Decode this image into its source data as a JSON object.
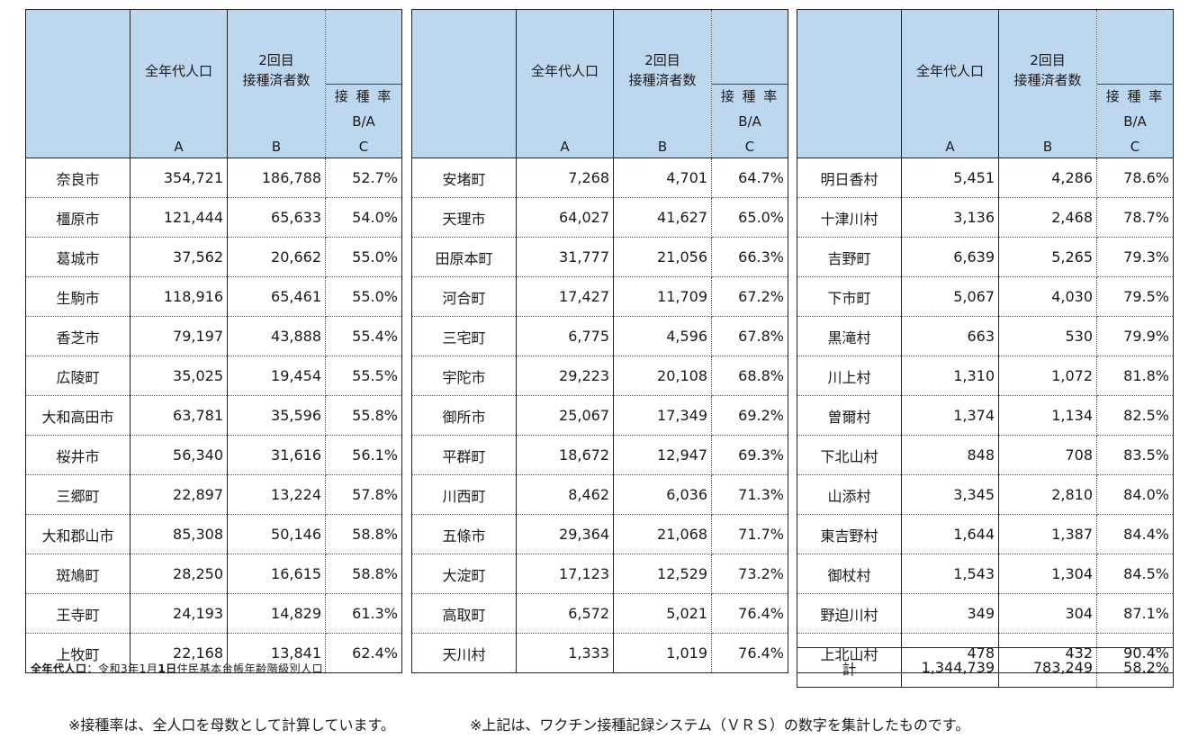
{
  "headers": {
    "col_a_label": "全年代人口",
    "col_b_label_line1": "2回目",
    "col_b_label_line2": "接種済者数",
    "col_c_label_line1": "接 種 率",
    "col_c_label_line2": "B/A",
    "col_a_letter": "A",
    "col_b_letter": "B",
    "col_c_letter": "C"
  },
  "tables": [
    {
      "rows": [
        {
          "name": "奈良市",
          "pop": "354,721",
          "vacc": "186,788",
          "rate": "52.7%"
        },
        {
          "name": "橿原市",
          "pop": "121,444",
          "vacc": "65,633",
          "rate": "54.0%"
        },
        {
          "name": "葛城市",
          "pop": "37,562",
          "vacc": "20,662",
          "rate": "55.0%"
        },
        {
          "name": "生駒市",
          "pop": "118,916",
          "vacc": "65,461",
          "rate": "55.0%"
        },
        {
          "name": "香芝市",
          "pop": "79,197",
          "vacc": "43,888",
          "rate": "55.4%"
        },
        {
          "name": "広陵町",
          "pop": "35,025",
          "vacc": "19,454",
          "rate": "55.5%"
        },
        {
          "name": "大和高田市",
          "pop": "63,781",
          "vacc": "35,596",
          "rate": "55.8%"
        },
        {
          "name": "桜井市",
          "pop": "56,340",
          "vacc": "31,616",
          "rate": "56.1%"
        },
        {
          "name": "三郷町",
          "pop": "22,897",
          "vacc": "13,224",
          "rate": "57.8%"
        },
        {
          "name": "大和郡山市",
          "pop": "85,308",
          "vacc": "50,146",
          "rate": "58.8%"
        },
        {
          "name": "斑鳩町",
          "pop": "28,250",
          "vacc": "16,615",
          "rate": "58.8%"
        },
        {
          "name": "王寺町",
          "pop": "24,193",
          "vacc": "14,829",
          "rate": "61.3%"
        },
        {
          "name": "上牧町",
          "pop": "22,168",
          "vacc": "13,841",
          "rate": "62.4%"
        }
      ]
    },
    {
      "rows": [
        {
          "name": "安堵町",
          "pop": "7,268",
          "vacc": "4,701",
          "rate": "64.7%"
        },
        {
          "name": "天理市",
          "pop": "64,027",
          "vacc": "41,627",
          "rate": "65.0%"
        },
        {
          "name": "田原本町",
          "pop": "31,777",
          "vacc": "21,056",
          "rate": "66.3%"
        },
        {
          "name": "河合町",
          "pop": "17,427",
          "vacc": "11,709",
          "rate": "67.2%"
        },
        {
          "name": "三宅町",
          "pop": "6,775",
          "vacc": "4,596",
          "rate": "67.8%"
        },
        {
          "name": "宇陀市",
          "pop": "29,223",
          "vacc": "20,108",
          "rate": "68.8%"
        },
        {
          "name": "御所市",
          "pop": "25,067",
          "vacc": "17,349",
          "rate": "69.2%"
        },
        {
          "name": "平群町",
          "pop": "18,672",
          "vacc": "12,947",
          "rate": "69.3%"
        },
        {
          "name": "川西町",
          "pop": "8,462",
          "vacc": "6,036",
          "rate": "71.3%"
        },
        {
          "name": "五條市",
          "pop": "29,364",
          "vacc": "21,068",
          "rate": "71.7%"
        },
        {
          "name": "大淀町",
          "pop": "17,123",
          "vacc": "12,529",
          "rate": "73.2%"
        },
        {
          "name": "高取町",
          "pop": "6,572",
          "vacc": "5,021",
          "rate": "76.4%"
        },
        {
          "name": "天川村",
          "pop": "1,333",
          "vacc": "1,019",
          "rate": "76.4%"
        }
      ]
    },
    {
      "rows": [
        {
          "name": "明日香村",
          "pop": "5,451",
          "vacc": "4,286",
          "rate": "78.6%"
        },
        {
          "name": "十津川村",
          "pop": "3,136",
          "vacc": "2,468",
          "rate": "78.7%"
        },
        {
          "name": "吉野町",
          "pop": "6,639",
          "vacc": "5,265",
          "rate": "79.3%"
        },
        {
          "name": "下市町",
          "pop": "5,067",
          "vacc": "4,030",
          "rate": "79.5%"
        },
        {
          "name": "黒滝村",
          "pop": "663",
          "vacc": "530",
          "rate": "79.9%"
        },
        {
          "name": "川上村",
          "pop": "1,310",
          "vacc": "1,072",
          "rate": "81.8%"
        },
        {
          "name": "曽爾村",
          "pop": "1,374",
          "vacc": "1,134",
          "rate": "82.5%"
        },
        {
          "name": "下北山村",
          "pop": "848",
          "vacc": "708",
          "rate": "83.5%"
        },
        {
          "name": "山添村",
          "pop": "3,345",
          "vacc": "2,810",
          "rate": "84.0%"
        },
        {
          "name": "東吉野村",
          "pop": "1,644",
          "vacc": "1,387",
          "rate": "84.4%"
        },
        {
          "name": "御杖村",
          "pop": "1,543",
          "vacc": "1,304",
          "rate": "84.5%"
        },
        {
          "name": "野迫川村",
          "pop": "349",
          "vacc": "304",
          "rate": "87.1%"
        },
        {
          "name": "上北山村",
          "pop": "478",
          "vacc": "432",
          "rate": "90.4%"
        }
      ]
    }
  ],
  "total": {
    "name": "計",
    "pop": "1,344,739",
    "vacc": "783,249",
    "rate": "58.2%"
  },
  "footnote": {
    "label": "全年代人口",
    "sep": "：",
    "date_prefix": "令和3年1月",
    "date_bold": "1日",
    "source": "住民基本台帳年齢階級別人口"
  },
  "notes": {
    "note1": "※接種率は、全人口を母数として計算しています。",
    "note2": "※上記は、ワクチン接種記録システム（ＶＲＳ）の数字を集計したものです。"
  },
  "colors": {
    "header_bg": "#bdd7ee",
    "border": "#222222"
  }
}
